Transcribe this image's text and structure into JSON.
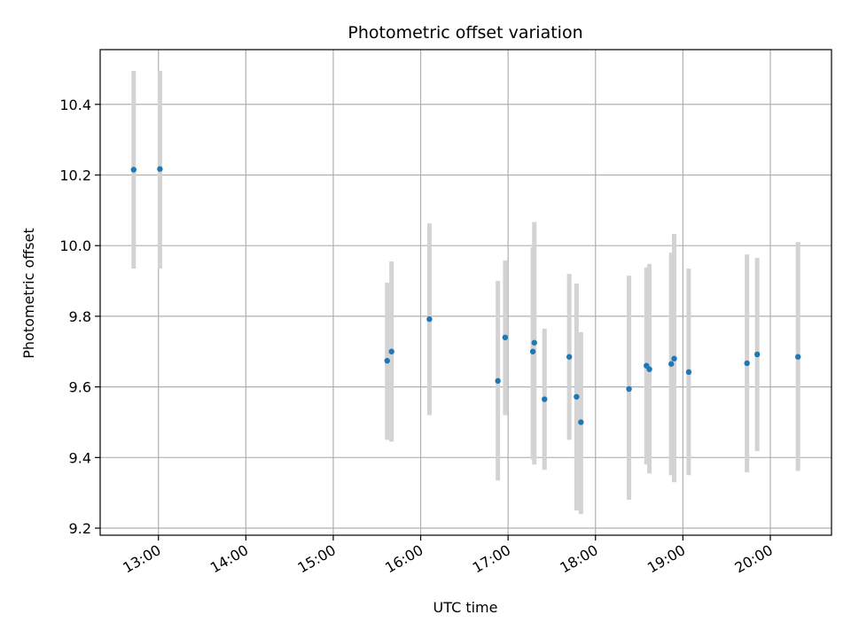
{
  "chart_data": {
    "type": "scatter",
    "title": "Photometric offset variation",
    "xlabel": "UTC time",
    "ylabel": "Photometric offset",
    "x_unit": "hour",
    "xlim": [
      "12:20",
      "20:42"
    ],
    "ylim": [
      9.18,
      10.555
    ],
    "x_ticks": [
      "13:00",
      "14:00",
      "15:00",
      "16:00",
      "17:00",
      "18:00",
      "19:00",
      "20:00"
    ],
    "y_ticks": [
      "9.2",
      "9.4",
      "9.6",
      "9.8",
      "10.0",
      "10.2",
      "10.4"
    ],
    "grid": true,
    "marker_color": "#1f77b4",
    "errorbar_color": "#d3d3d3",
    "points": [
      {
        "t": "12:43",
        "y": 10.215,
        "lo": 9.935,
        "hi": 10.495
      },
      {
        "t": "13:01",
        "y": 10.217,
        "lo": 9.935,
        "hi": 10.495
      },
      {
        "t": "15:37",
        "y": 9.674,
        "lo": 9.45,
        "hi": 9.895
      },
      {
        "t": "15:40",
        "y": 9.7,
        "lo": 9.445,
        "hi": 9.955
      },
      {
        "t": "16:06",
        "y": 9.792,
        "lo": 9.52,
        "hi": 10.063
      },
      {
        "t": "16:53",
        "y": 9.617,
        "lo": 9.335,
        "hi": 9.9
      },
      {
        "t": "16:58",
        "y": 9.74,
        "lo": 9.52,
        "hi": 9.958
      },
      {
        "t": "17:17",
        "y": 9.7,
        "lo": 9.395,
        "hi": 9.995
      },
      {
        "t": "17:18",
        "y": 9.725,
        "lo": 9.38,
        "hi": 10.067
      },
      {
        "t": "17:25",
        "y": 9.565,
        "lo": 9.365,
        "hi": 9.765
      },
      {
        "t": "17:42",
        "y": 9.685,
        "lo": 9.45,
        "hi": 9.92
      },
      {
        "t": "17:47",
        "y": 9.572,
        "lo": 9.25,
        "hi": 9.893
      },
      {
        "t": "17:50",
        "y": 9.5,
        "lo": 9.24,
        "hi": 9.755
      },
      {
        "t": "18:23",
        "y": 9.594,
        "lo": 9.28,
        "hi": 9.915
      },
      {
        "t": "18:35",
        "y": 9.66,
        "lo": 9.38,
        "hi": 9.938
      },
      {
        "t": "18:37",
        "y": 9.65,
        "lo": 9.355,
        "hi": 9.948
      },
      {
        "t": "18:52",
        "y": 9.665,
        "lo": 9.35,
        "hi": 9.98
      },
      {
        "t": "18:54",
        "y": 9.68,
        "lo": 9.33,
        "hi": 10.033
      },
      {
        "t": "19:04",
        "y": 9.642,
        "lo": 9.35,
        "hi": 9.935
      },
      {
        "t": "19:44",
        "y": 9.667,
        "lo": 9.358,
        "hi": 9.975
      },
      {
        "t": "19:51",
        "y": 9.692,
        "lo": 9.418,
        "hi": 9.965
      },
      {
        "t": "20:19",
        "y": 9.685,
        "lo": 9.362,
        "hi": 10.01
      }
    ]
  }
}
